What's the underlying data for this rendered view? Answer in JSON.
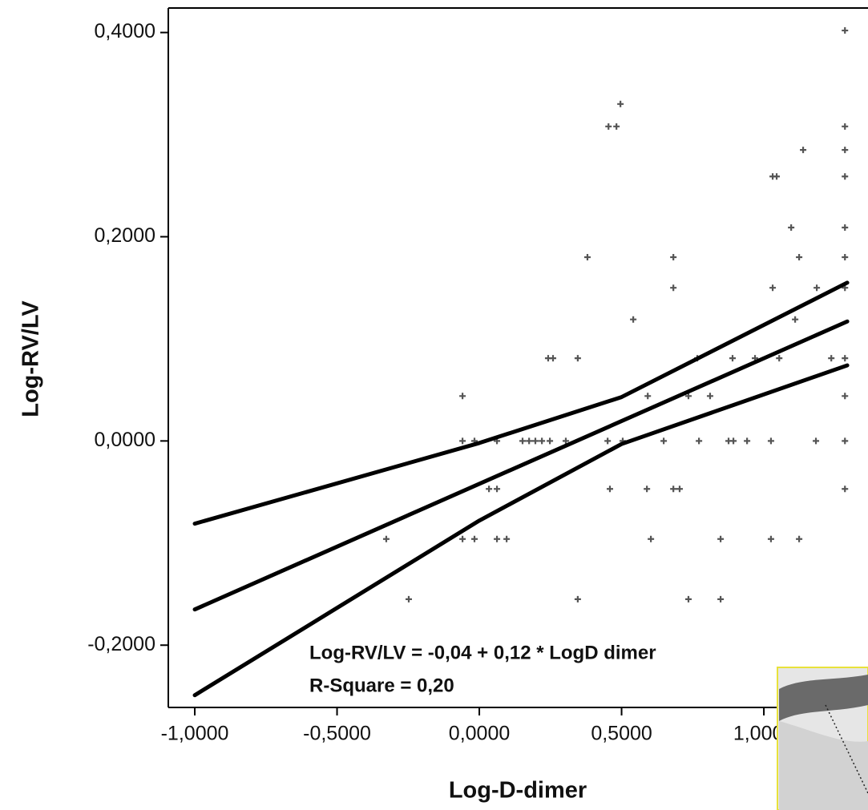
{
  "chart_data": {
    "type": "scatter",
    "x_label": "Log-D-dimer",
    "y_label": "Log-RV/LV",
    "annotations": [
      "Log-RV/LV = -0,04 + 0,12 * LogD dimer",
      "R-Square = 0,20"
    ],
    "xlim": [
      -1.093,
      1.366
    ],
    "ylim": [
      -0.261,
      0.424
    ],
    "xticks": [
      {
        "value": -1,
        "label": "-1,0000"
      },
      {
        "value": -0.5,
        "label": "-0,5000"
      },
      {
        "value": 0,
        "label": "0,0000"
      },
      {
        "value": 0.5,
        "label": "0,5000"
      },
      {
        "value": 1,
        "label": "1,0000"
      }
    ],
    "yticks": [
      {
        "value": -0.2,
        "label": "-0,2000"
      },
      {
        "value": 0,
        "label": "0,0000"
      },
      {
        "value": 0.2,
        "label": "0,2000"
      },
      {
        "value": 0.4,
        "label": "0,4000"
      }
    ],
    "series": [
      {
        "color": "#555555",
        "x": [
          1.285,
          0.496,
          0.454,
          0.482,
          1.285,
          1.138,
          1.285,
          1.031,
          1.045,
          1.285,
          1.096,
          1.285,
          0.38,
          0.682,
          1.124,
          1.285,
          0.682,
          1.031,
          1.186,
          1.285,
          0.541,
          1.11,
          0.242,
          0.259,
          0.346,
          0.766,
          0.89,
          0.969,
          1.054,
          1.237,
          1.285,
          -0.059,
          0.592,
          0.735,
          0.811,
          1.285,
          -0.059,
          -0.017,
          0.062,
          0.152,
          0.175,
          0.197,
          0.22,
          0.248,
          0.304,
          0.451,
          0.504,
          0.648,
          0.772,
          0.876,
          0.893,
          0.941,
          1.025,
          1.183,
          1.285,
          0.034,
          0.062,
          0.459,
          0.589,
          0.682,
          0.704,
          1.285,
          -0.327,
          -0.059,
          -0.017,
          0.062,
          0.096,
          0.603,
          0.848,
          1.025,
          1.124,
          -0.248,
          0.346,
          0.735,
          0.848
        ],
        "values": [
          0.402,
          0.33,
          0.308,
          0.308,
          0.308,
          0.285,
          0.285,
          0.259,
          0.259,
          0.259,
          0.209,
          0.209,
          0.18,
          0.18,
          0.18,
          0.18,
          0.15,
          0.15,
          0.15,
          0.15,
          0.119,
          0.119,
          0.081,
          0.081,
          0.081,
          0.081,
          0.081,
          0.081,
          0.081,
          0.081,
          0.081,
          0.044,
          0.044,
          0.044,
          0.044,
          0.044,
          0,
          0,
          0,
          0,
          0,
          0,
          0,
          0,
          0,
          0,
          0,
          0,
          0,
          0,
          0,
          0,
          0,
          0,
          0,
          -0.047,
          -0.047,
          -0.047,
          -0.047,
          -0.047,
          -0.047,
          -0.047,
          -0.096,
          -0.096,
          -0.096,
          -0.096,
          -0.096,
          -0.096,
          -0.096,
          -0.096,
          -0.096,
          -0.155,
          -0.155,
          -0.155,
          -0.155
        ]
      }
    ],
    "fit_lines": [
      {
        "color": "#000000",
        "x": [
          -1,
          0,
          0.5,
          1.293
        ],
        "values": [
          -0.081,
          -0.002,
          0.043,
          0.155
        ]
      },
      {
        "color": "#000000",
        "x": [
          -1,
          1.293
        ],
        "values": [
          -0.165,
          0.117
        ]
      },
      {
        "color": "#000000",
        "x": [
          -1,
          0,
          0.5,
          1.293
        ],
        "values": [
          -0.249,
          -0.078,
          -0.003,
          0.074
        ]
      }
    ]
  }
}
